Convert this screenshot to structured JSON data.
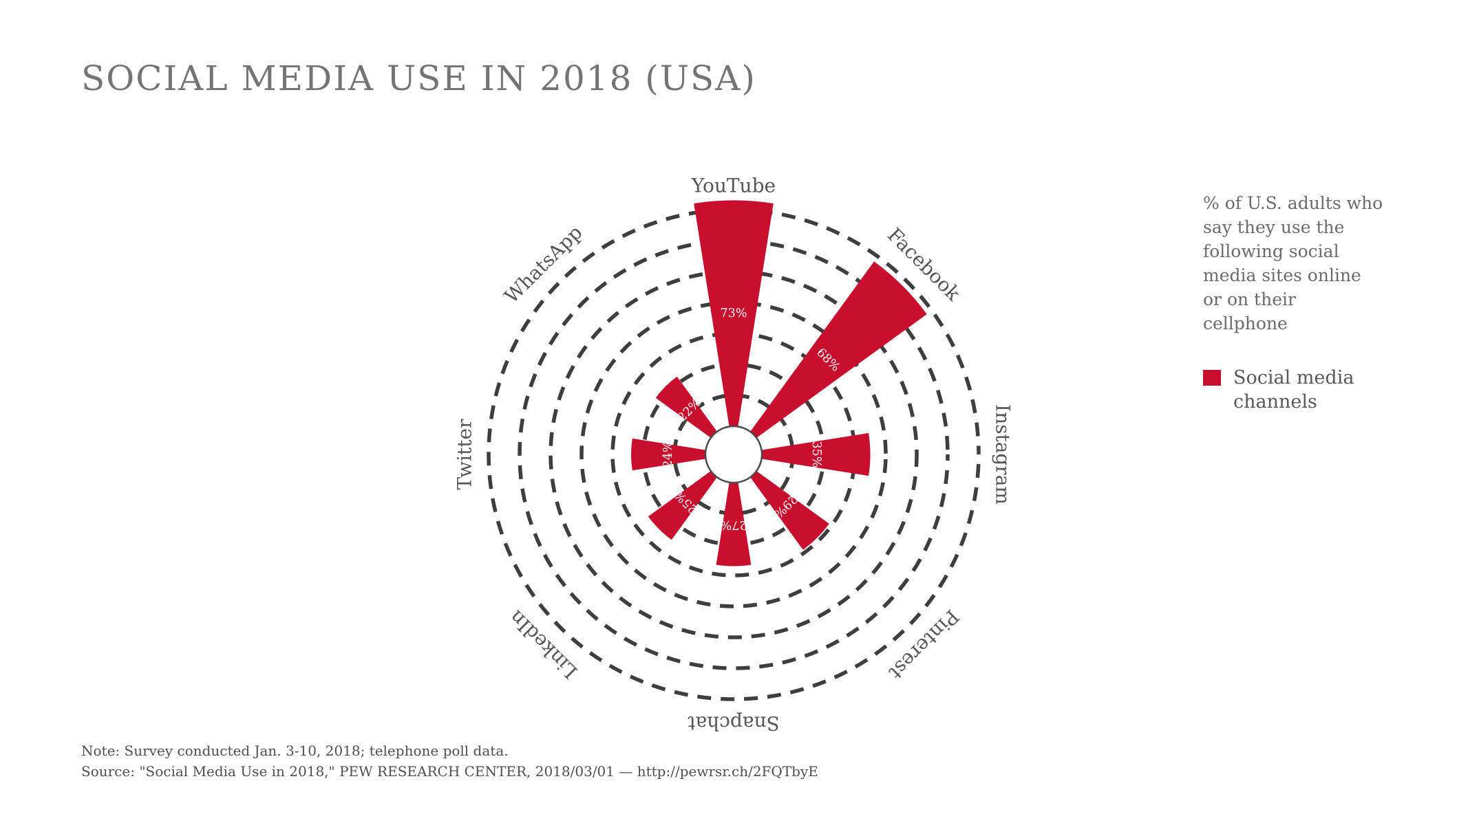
{
  "header": {
    "title": "SOCIAL MEDIA USE IN 2018 (USA)"
  },
  "chart_data": {
    "type": "bar",
    "subtype": "polar-rose",
    "title": "SOCIAL MEDIA USE IN 2018 (USA)",
    "categories": [
      "YouTube",
      "Facebook",
      "Instagram",
      "Pinterest",
      "Snapchat",
      "LinkedIn",
      "Twitter",
      "WhatsApp"
    ],
    "values": [
      73,
      68,
      35,
      29,
      27,
      25,
      24,
      22
    ],
    "value_labels": [
      "73%",
      "68%",
      "35%",
      "29%",
      "27%",
      "25%",
      "24%",
      "22%"
    ],
    "unit": "%",
    "series_name": "Social media channels",
    "angle_start_deg": 0,
    "angle_step_deg": 45,
    "clockwise": true,
    "radial_axis": {
      "min": 0,
      "max": 70,
      "tick_interval": 10,
      "gridlines": "dashed-circles",
      "tick_labels_shown": false
    }
  },
  "legend": {
    "description": "% of U.S. adults who\nsay they use the\nfollowing social\nmedia sites online\nor on their\ncellphone",
    "item_label": "Social media\nchannels"
  },
  "notes": {
    "note": "Note: Survey conducted Jan. 3-10, 2018; telephone poll data.",
    "source": "Source: \"Social Media Use in 2018,\" PEW RESEARCH CENTER, 2018/03/01 — http://pewrsr.ch/2FQTbyE"
  },
  "colors": {
    "accent_red": "#C8102E",
    "grid_gray": "#3E3E3E",
    "category_label_gray": "#565656",
    "value_label_white": "#FFFFFF",
    "hub_stroke_gray": "#4A4A4A",
    "title_gray": "#747474"
  }
}
